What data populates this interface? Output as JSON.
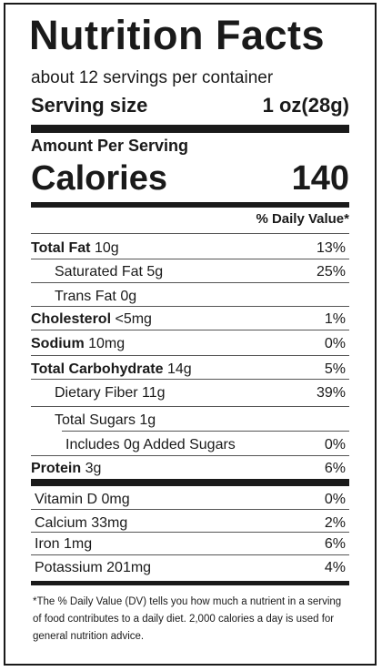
{
  "title": "Nutrition Facts",
  "servings": "about 12 servings per container",
  "serving_size": {
    "label": "Serving size",
    "value": "1 oz(28g)"
  },
  "amount_per_serving": "Amount Per Serving",
  "calories": {
    "label": "Calories",
    "value": "140"
  },
  "daily_value_header": "% Daily Value*",
  "nutrients": [
    {
      "name": "Total Fat",
      "amount": "10g",
      "dv": "13%"
    },
    {
      "name": "Saturated Fat",
      "amount": "5g",
      "dv": "25%"
    },
    {
      "name": "Trans Fat",
      "amount": "0g",
      "dv": ""
    },
    {
      "name": "Cholesterol",
      "amount": "<5mg",
      "dv": "1%"
    },
    {
      "name": "Sodium",
      "amount": "10mg",
      "dv": "0%"
    },
    {
      "name": "Total Carbohydrate",
      "amount": "14g",
      "dv": "5%"
    },
    {
      "name": "Dietary Fiber",
      "amount": "11g",
      "dv": "39%"
    },
    {
      "name": "Total Sugars",
      "amount": "1g",
      "dv": ""
    },
    {
      "name": "Includes 0g Added Sugars",
      "amount": "",
      "dv": "0%"
    },
    {
      "name": "Protein",
      "amount": "3g",
      "dv": "6%"
    }
  ],
  "vitamins": [
    {
      "name": "Vitamin D",
      "amount": "0mg",
      "dv": "0%"
    },
    {
      "name": "Calcium",
      "amount": "33mg",
      "dv": "2%"
    },
    {
      "name": "Iron",
      "amount": "1mg",
      "dv": "6%"
    },
    {
      "name": "Potassium",
      "amount": "201mg",
      "dv": "4%"
    }
  ],
  "footnote": "*The % Daily Value (DV) tells you how much a nutrient in a serving of food contributes to a daily diet. 2,000 calories a day is used for general nutrition advice."
}
